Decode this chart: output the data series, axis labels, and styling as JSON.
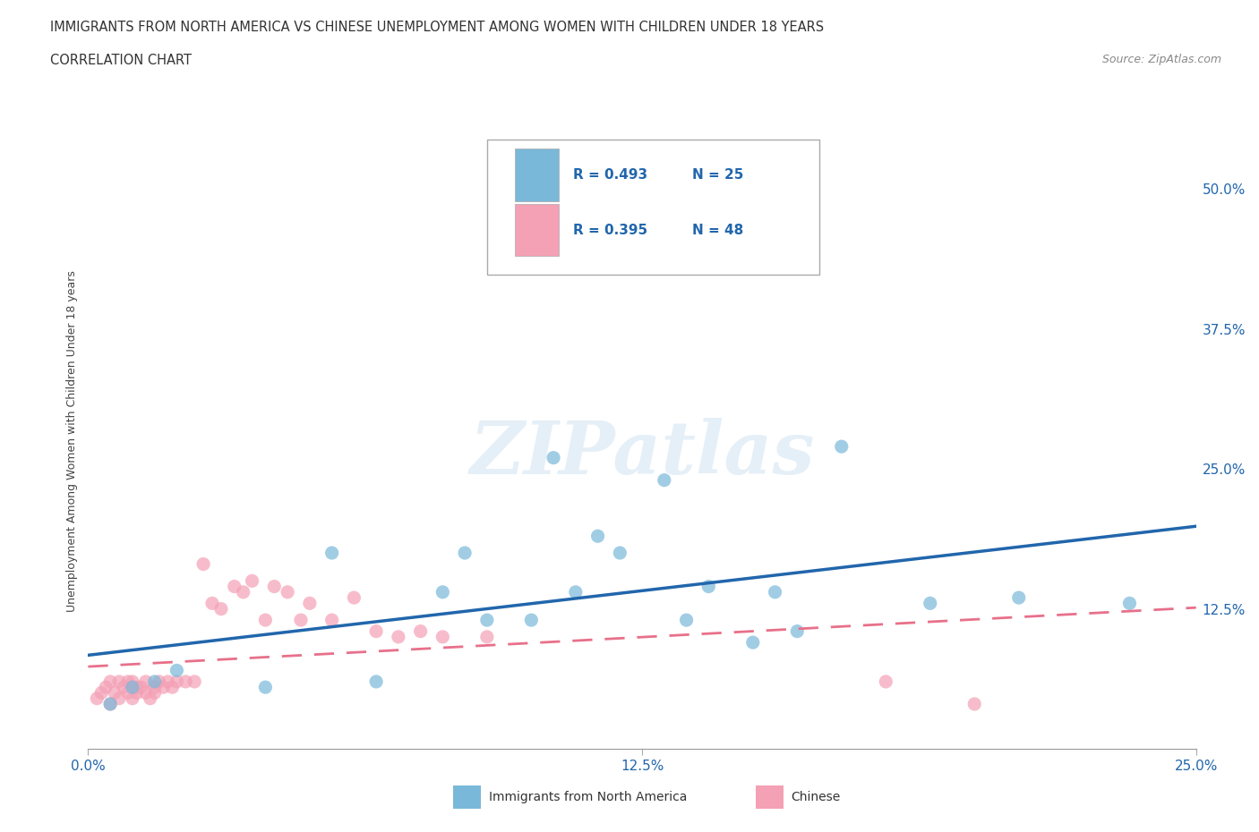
{
  "title_line1": "IMMIGRANTS FROM NORTH AMERICA VS CHINESE UNEMPLOYMENT AMONG WOMEN WITH CHILDREN UNDER 18 YEARS",
  "title_line2": "CORRELATION CHART",
  "source_text": "Source: ZipAtlas.com",
  "ylabel": "Unemployment Among Women with Children Under 18 years",
  "xlim": [
    0.0,
    0.25
  ],
  "ylim": [
    0.0,
    0.55
  ],
  "xtick_labels": [
    "0.0%",
    "12.5%",
    "25.0%"
  ],
  "xtick_positions": [
    0.0,
    0.125,
    0.25
  ],
  "ytick_labels_right": [
    "50.0%",
    "37.5%",
    "25.0%",
    "12.5%"
  ],
  "ytick_positions_right": [
    0.5,
    0.375,
    0.25,
    0.125
  ],
  "grid_color": "#cccccc",
  "background_color": "#ffffff",
  "blue_color": "#7ab8d9",
  "pink_color": "#f4a0b5",
  "blue_line_color": "#2166ac",
  "pink_line_color": "#e8708a",
  "legend_R1": "R = 0.493",
  "legend_N1": "N = 25",
  "legend_R2": "R = 0.395",
  "legend_N2": "N = 48",
  "watermark": "ZIPatlas",
  "blue_scatter_x": [
    0.005,
    0.01,
    0.015,
    0.02,
    0.04,
    0.055,
    0.065,
    0.08,
    0.085,
    0.09,
    0.1,
    0.105,
    0.11,
    0.115,
    0.12,
    0.13,
    0.135,
    0.14,
    0.15,
    0.155,
    0.16,
    0.17,
    0.19,
    0.21,
    0.235
  ],
  "blue_scatter_y": [
    0.04,
    0.055,
    0.06,
    0.07,
    0.055,
    0.175,
    0.06,
    0.14,
    0.175,
    0.115,
    0.115,
    0.26,
    0.14,
    0.19,
    0.175,
    0.24,
    0.115,
    0.145,
    0.095,
    0.14,
    0.105,
    0.27,
    0.13,
    0.135,
    0.13
  ],
  "pink_scatter_x": [
    0.002,
    0.003,
    0.004,
    0.005,
    0.005,
    0.006,
    0.007,
    0.007,
    0.008,
    0.009,
    0.009,
    0.01,
    0.01,
    0.011,
    0.011,
    0.012,
    0.013,
    0.013,
    0.014,
    0.015,
    0.015,
    0.016,
    0.017,
    0.018,
    0.019,
    0.02,
    0.022,
    0.024,
    0.026,
    0.028,
    0.03,
    0.033,
    0.035,
    0.037,
    0.04,
    0.042,
    0.045,
    0.048,
    0.05,
    0.055,
    0.06,
    0.065,
    0.07,
    0.075,
    0.08,
    0.09,
    0.18,
    0.2
  ],
  "pink_scatter_y": [
    0.045,
    0.05,
    0.055,
    0.04,
    0.06,
    0.05,
    0.06,
    0.045,
    0.055,
    0.06,
    0.05,
    0.045,
    0.06,
    0.055,
    0.05,
    0.055,
    0.05,
    0.06,
    0.045,
    0.05,
    0.055,
    0.06,
    0.055,
    0.06,
    0.055,
    0.06,
    0.06,
    0.06,
    0.165,
    0.13,
    0.125,
    0.145,
    0.14,
    0.15,
    0.115,
    0.145,
    0.14,
    0.115,
    0.13,
    0.115,
    0.135,
    0.105,
    0.1,
    0.105,
    0.1,
    0.1,
    0.06,
    0.04
  ]
}
